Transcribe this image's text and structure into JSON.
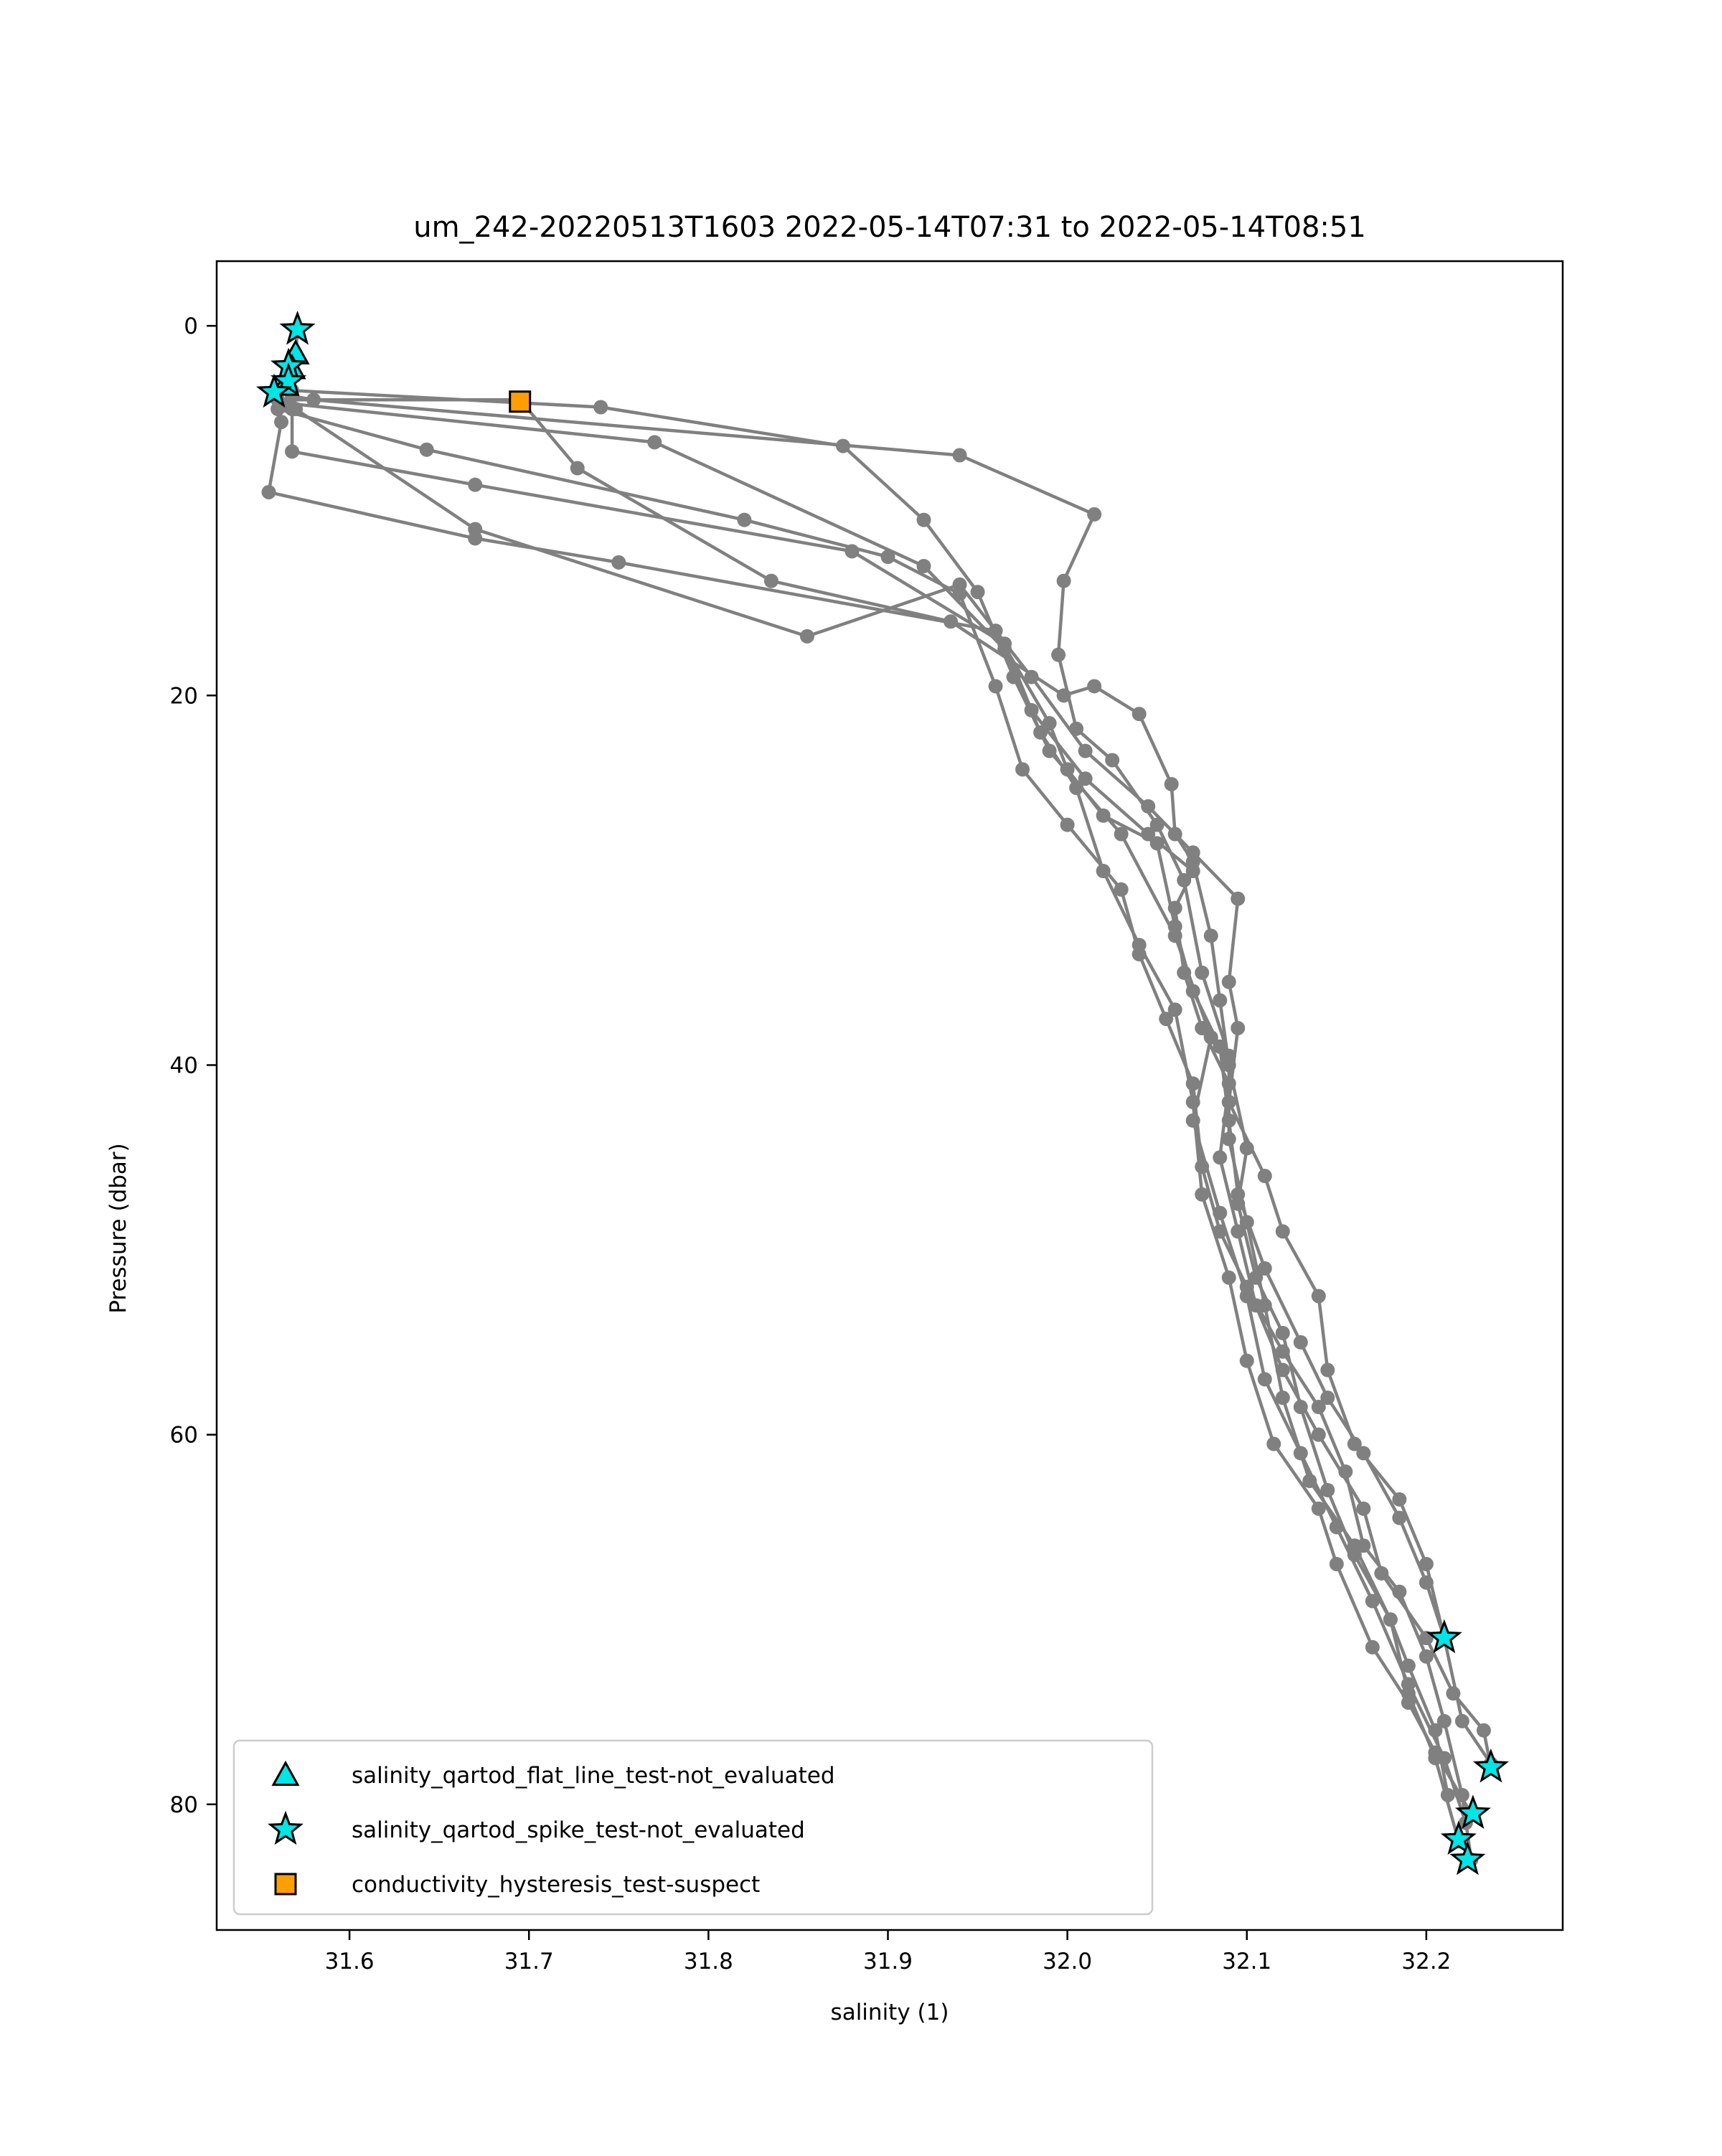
{
  "chart_data": {
    "type": "scatter",
    "title": "um_242-20220513T1603 2022-05-14T07:31 to 2022-05-14T08:51",
    "xlabel": "salinity (1)",
    "ylabel": "Pressure (dbar)",
    "xlim": [
      31.526,
      32.276
    ],
    "ylim": [
      86.8,
      -3.5
    ],
    "y_inverted": true,
    "grid": false,
    "legend_position": "lower-left",
    "x_ticks": [
      {
        "value": 31.6,
        "label": "31.6"
      },
      {
        "value": 31.7,
        "label": "31.7"
      },
      {
        "value": 31.8,
        "label": "31.8"
      },
      {
        "value": 31.9,
        "label": "31.9"
      },
      {
        "value": 32.0,
        "label": "32.0"
      },
      {
        "value": 32.1,
        "label": "32.1"
      },
      {
        "value": 32.2,
        "label": "32.2"
      }
    ],
    "y_ticks": [
      {
        "value": 0,
        "label": "0"
      },
      {
        "value": 20,
        "label": "20"
      },
      {
        "value": 40,
        "label": "40"
      },
      {
        "value": 60,
        "label": "60"
      },
      {
        "value": 80,
        "label": "80"
      }
    ],
    "colors": {
      "profile_line": "#808080",
      "flag_fill": "#00e5e5",
      "hysteresis_fill": "#ff9e00",
      "marker_edge": "#000000"
    },
    "profiles": [
      {
        "name": "down-1",
        "points": [
          [
            31.571,
            0.2
          ],
          [
            31.57,
            1.5
          ],
          [
            31.568,
            3.5
          ],
          [
            31.74,
            4.4
          ],
          [
            31.875,
            6.5
          ],
          [
            31.92,
            10.5
          ],
          [
            31.95,
            14.4
          ],
          [
            31.97,
            19.0
          ],
          [
            31.99,
            23.0
          ],
          [
            32.03,
            27.5
          ],
          [
            32.06,
            33.0
          ],
          [
            32.08,
            38.5
          ],
          [
            32.07,
            43.0
          ],
          [
            32.085,
            48.0
          ],
          [
            32.1,
            52.5
          ],
          [
            32.11,
            57.0
          ],
          [
            32.13,
            61.0
          ],
          [
            32.15,
            65.0
          ],
          [
            32.17,
            69.0
          ],
          [
            32.19,
            73.5
          ],
          [
            32.21,
            77.5
          ],
          [
            32.222,
            81.0
          ]
        ]
      },
      {
        "name": "up-1",
        "points": [
          [
            32.225,
            80.5
          ],
          [
            32.205,
            77.2
          ],
          [
            32.19,
            74.5
          ],
          [
            32.17,
            71.5
          ],
          [
            32.15,
            67.0
          ],
          [
            32.14,
            64.0
          ],
          [
            32.115,
            60.5
          ],
          [
            32.1,
            56.0
          ],
          [
            32.09,
            51.5
          ],
          [
            32.075,
            47.0
          ],
          [
            32.07,
            42.0
          ],
          [
            32.06,
            37.0
          ],
          [
            32.04,
            33.5
          ],
          [
            32.02,
            29.5
          ],
          [
            32.005,
            25.0
          ],
          [
            31.985,
            22.0
          ],
          [
            31.965,
            17.5
          ],
          [
            31.92,
            13.0
          ],
          [
            31.77,
            6.3
          ],
          [
            31.566,
            4.2
          ],
          [
            31.566,
            2.2
          ]
        ]
      },
      {
        "name": "down-2",
        "points": [
          [
            31.566,
            2.5
          ],
          [
            31.568,
            4.5
          ],
          [
            31.568,
            6.8
          ],
          [
            31.67,
            8.6
          ],
          [
            31.88,
            12.2
          ],
          [
            31.965,
            17.2
          ],
          [
            31.98,
            20.8
          ],
          [
            32.01,
            24.5
          ],
          [
            32.045,
            27.5
          ],
          [
            32.07,
            29.5
          ],
          [
            32.06,
            31.5
          ],
          [
            32.065,
            35.0
          ],
          [
            32.075,
            38.0
          ],
          [
            32.09,
            41.0
          ],
          [
            32.085,
            45.0
          ],
          [
            32.095,
            49.0
          ],
          [
            32.105,
            53.0
          ],
          [
            32.12,
            56.5
          ],
          [
            32.14,
            60.0
          ],
          [
            32.165,
            64.0
          ],
          [
            32.175,
            67.5
          ],
          [
            32.2,
            71.0
          ],
          [
            32.215,
            74.0
          ],
          [
            32.232,
            76.0
          ],
          [
            32.236,
            78.0
          ]
        ]
      },
      {
        "name": "up-2",
        "points": [
          [
            32.236,
            77.8
          ],
          [
            32.22,
            75.5
          ],
          [
            32.21,
            71.0
          ],
          [
            32.2,
            68.0
          ],
          [
            32.185,
            64.5
          ],
          [
            32.165,
            61.0
          ],
          [
            32.145,
            58.0
          ],
          [
            32.13,
            55.0
          ],
          [
            32.11,
            51.0
          ],
          [
            32.095,
            47.0
          ],
          [
            32.09,
            43.0
          ],
          [
            32.085,
            39.0
          ],
          [
            32.07,
            36.0
          ],
          [
            32.06,
            32.5
          ],
          [
            32.05,
            28.0
          ],
          [
            32.02,
            26.5
          ],
          [
            32.0,
            24.0
          ],
          [
            31.99,
            21.5
          ],
          [
            31.96,
            16.5
          ],
          [
            31.75,
            12.8
          ],
          [
            31.67,
            11.5
          ],
          [
            31.555,
            9.0
          ],
          [
            31.562,
            5.2
          ],
          [
            31.558,
            3.8
          ]
        ]
      },
      {
        "name": "down-3",
        "points": [
          [
            31.568,
            3.8
          ],
          [
            31.58,
            4.0
          ],
          [
            31.94,
            7.0
          ],
          [
            32.015,
            10.2
          ],
          [
            31.998,
            13.8
          ],
          [
            31.995,
            17.8
          ],
          [
            32.005,
            21.8
          ],
          [
            32.025,
            23.5
          ],
          [
            32.05,
            27.0
          ],
          [
            32.065,
            30.0
          ],
          [
            32.075,
            35.0
          ],
          [
            32.09,
            39.5
          ],
          [
            32.09,
            44.0
          ],
          [
            32.1,
            48.5
          ],
          [
            32.11,
            53.0
          ],
          [
            32.12,
            58.0
          ],
          [
            32.135,
            62.5
          ],
          [
            32.16,
            66.0
          ],
          [
            32.18,
            70.0
          ],
          [
            32.19,
            74.0
          ],
          [
            32.205,
            77.5
          ],
          [
            32.218,
            82.0
          ]
        ]
      },
      {
        "name": "up-3",
        "points": [
          [
            32.225,
            83.0
          ],
          [
            32.22,
            79.5
          ],
          [
            32.21,
            75.5
          ],
          [
            32.2,
            72.0
          ],
          [
            32.185,
            68.5
          ],
          [
            32.165,
            66.0
          ],
          [
            32.155,
            62.0
          ],
          [
            32.14,
            58.5
          ],
          [
            32.12,
            55.5
          ],
          [
            32.1,
            52.0
          ],
          [
            32.085,
            49.0
          ],
          [
            32.075,
            45.5
          ],
          [
            32.07,
            41.0
          ],
          [
            32.055,
            37.5
          ],
          [
            32.04,
            34.0
          ],
          [
            32.03,
            30.5
          ],
          [
            32.0,
            27.0
          ],
          [
            31.975,
            24.0
          ],
          [
            31.96,
            19.5
          ],
          [
            31.94,
            14.5
          ],
          [
            31.9,
            12.5
          ],
          [
            31.82,
            10.5
          ],
          [
            31.643,
            6.7
          ],
          [
            31.56,
            4.5
          ]
        ]
      },
      {
        "name": "down-4",
        "points": [
          [
            31.56,
            4.0
          ],
          [
            31.695,
            4.0
          ],
          [
            31.727,
            7.7
          ],
          [
            31.835,
            13.8
          ],
          [
            31.935,
            16.0
          ],
          [
            31.998,
            20.0
          ],
          [
            32.015,
            19.5
          ],
          [
            32.04,
            21.0
          ],
          [
            32.058,
            24.8
          ],
          [
            32.06,
            27.5
          ],
          [
            32.07,
            29.0
          ],
          [
            32.08,
            33.0
          ],
          [
            32.085,
            36.5
          ],
          [
            32.09,
            40.0
          ],
          [
            32.1,
            44.5
          ],
          [
            32.095,
            47.5
          ],
          [
            32.105,
            51.5
          ],
          [
            32.12,
            54.5
          ],
          [
            32.13,
            58.5
          ],
          [
            32.145,
            63.0
          ],
          [
            32.16,
            66.5
          ],
          [
            32.18,
            70.0
          ],
          [
            32.19,
            72.5
          ],
          [
            32.205,
            76.0
          ],
          [
            32.212,
            79.5
          ]
        ]
      },
      {
        "name": "up-4",
        "points": [
          [
            32.21,
            71.0
          ],
          [
            32.2,
            67.0
          ],
          [
            32.185,
            63.5
          ],
          [
            32.16,
            60.5
          ],
          [
            32.145,
            56.5
          ],
          [
            32.14,
            52.5
          ],
          [
            32.12,
            49.0
          ],
          [
            32.11,
            46.0
          ],
          [
            32.09,
            42.0
          ],
          [
            32.095,
            38.0
          ],
          [
            32.09,
            35.5
          ],
          [
            32.095,
            31.0
          ],
          [
            32.07,
            28.5
          ],
          [
            32.045,
            26.0
          ],
          [
            32.01,
            23.0
          ],
          [
            31.98,
            19.0
          ],
          [
            31.94,
            14.0
          ],
          [
            31.855,
            16.8
          ],
          [
            31.67,
            11.0
          ],
          [
            31.57,
            4.5
          ]
        ]
      }
    ],
    "flag_markers": [
      {
        "series": "salinity_qartod_flat_line_test-not_evaluated",
        "marker": "triangle",
        "points": [
          [
            31.57,
            1.5
          ],
          [
            31.568,
            2.3
          ],
          [
            31.564,
            3.2
          ]
        ]
      },
      {
        "series": "salinity_qartod_spike_test-not_evaluated",
        "marker": "star",
        "points": [
          [
            31.571,
            0.2
          ],
          [
            31.566,
            2.2
          ],
          [
            31.566,
            3.0
          ],
          [
            31.558,
            3.6
          ],
          [
            32.21,
            71.0
          ],
          [
            32.236,
            78.0
          ],
          [
            32.226,
            80.5
          ],
          [
            32.218,
            81.9
          ],
          [
            32.223,
            83.0
          ]
        ]
      },
      {
        "series": "conductivity_hysteresis_test-suspect",
        "marker": "square",
        "points": [
          [
            31.695,
            4.1
          ]
        ]
      }
    ],
    "legend": [
      {
        "label": "salinity_qartod_flat_line_test-not_evaluated",
        "marker": "triangle"
      },
      {
        "label": "salinity_qartod_spike_test-not_evaluated",
        "marker": "star"
      },
      {
        "label": "conductivity_hysteresis_test-suspect",
        "marker": "square"
      }
    ]
  }
}
